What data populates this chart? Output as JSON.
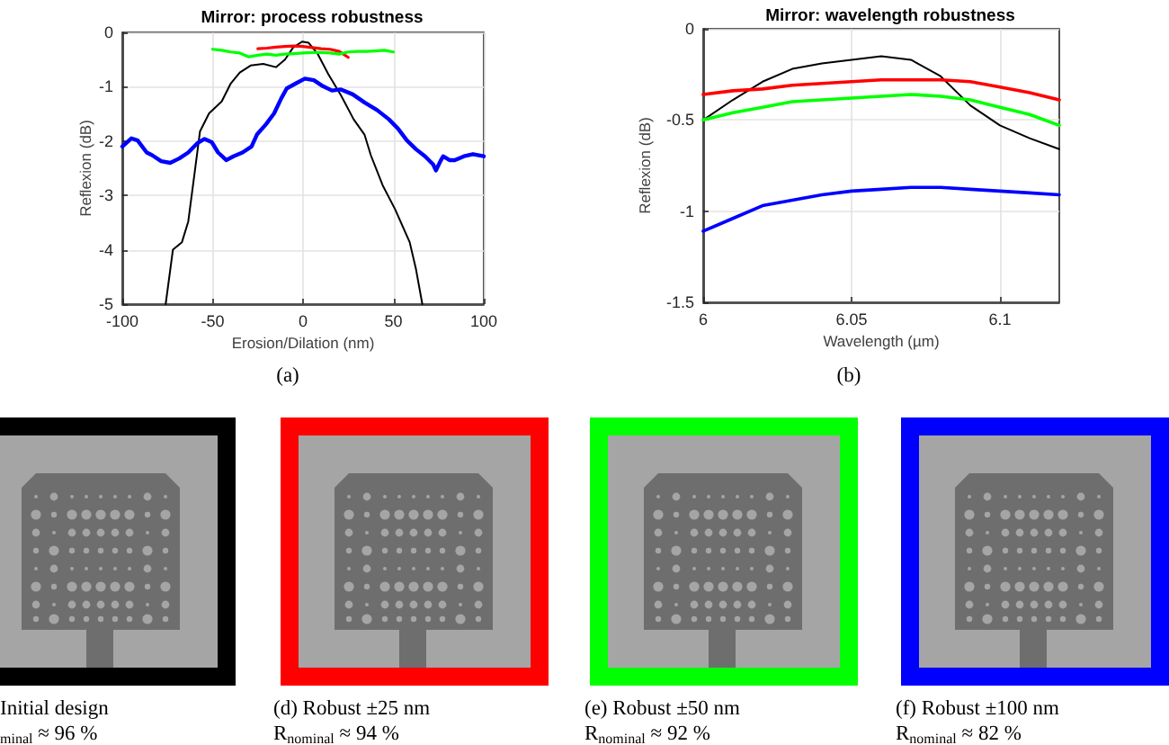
{
  "chart_data": [
    {
      "type": "line",
      "title": "Mirror: process robustness",
      "xlabel": "Erosion/Dilation (nm)",
      "ylabel": "Reflexion (dB)",
      "xlim": [
        -100,
        100
      ],
      "xticks": [
        -100,
        -50,
        0,
        50,
        100
      ],
      "ylim": [
        -5,
        0
      ],
      "yticks": [
        -5,
        -4,
        -3,
        -2,
        -1,
        0
      ],
      "grid": true,
      "annotations": [
        "(a)"
      ],
      "series": [
        {
          "color": "#000000",
          "x": [
            -76,
            -72,
            -67,
            -63.5,
            -60,
            -57,
            -52,
            -45,
            -40,
            -35,
            -29,
            -22,
            -15,
            -10,
            -5.5,
            -0.5,
            3,
            8,
            14,
            21,
            28,
            34,
            37.5,
            44,
            51,
            59,
            62.5,
            66
          ],
          "values": [
            -5,
            -4,
            -3.86,
            -3.48,
            -2.59,
            -1.82,
            -1.49,
            -1.27,
            -0.94,
            -0.74,
            -0.61,
            -0.58,
            -0.64,
            -0.5,
            -0.28,
            -0.17,
            -0.19,
            -0.39,
            -0.77,
            -1.16,
            -1.6,
            -1.88,
            -2.26,
            -2.81,
            -3.26,
            -3.86,
            -4.36,
            -5
          ]
        },
        {
          "color": "#ff0000",
          "x": [
            -25,
            -20,
            -15,
            -10,
            -5,
            0,
            5,
            10,
            15,
            20,
            25
          ],
          "values": [
            -0.3,
            -0.29,
            -0.27,
            -0.26,
            -0.25,
            -0.26,
            -0.28,
            -0.3,
            -0.31,
            -0.35,
            -0.46
          ]
        },
        {
          "color": "#00ff00",
          "x": [
            -50,
            -45,
            -40,
            -35,
            -30,
            -25,
            -20,
            -15,
            -10,
            -5,
            0,
            5,
            10,
            15,
            20,
            25,
            30,
            35,
            40,
            45,
            50
          ],
          "values": [
            -0.31,
            -0.33,
            -0.36,
            -0.38,
            -0.45,
            -0.42,
            -0.4,
            -0.42,
            -0.4,
            -0.39,
            -0.38,
            -0.37,
            -0.37,
            -0.38,
            -0.4,
            -0.36,
            -0.35,
            -0.35,
            -0.34,
            -0.33,
            -0.36
          ]
        },
        {
          "color": "#0000ff",
          "x": [
            -100,
            -95,
            -91.5,
            -86.5,
            -83.5,
            -78.5,
            -73.5,
            -68.5,
            -63.5,
            -58.5,
            -54.5,
            -50.5,
            -47,
            -42.5,
            -38.5,
            -33.5,
            -28.5,
            -25.5,
            -20.5,
            -16,
            -12,
            -9,
            -4,
            1,
            6,
            11,
            16,
            21,
            27.5,
            34,
            41,
            47.5,
            52.5,
            57.5,
            62.5,
            67.5,
            72,
            73.5,
            76,
            77.5,
            81,
            84,
            89,
            94,
            100
          ],
          "values": [
            -2.1,
            -1.95,
            -1.99,
            -2.21,
            -2.26,
            -2.37,
            -2.4,
            -2.32,
            -2.21,
            -2.04,
            -1.96,
            -2.02,
            -2.21,
            -2.35,
            -2.28,
            -2.21,
            -2.1,
            -1.88,
            -1.69,
            -1.49,
            -1.21,
            -1.03,
            -0.94,
            -0.85,
            -0.88,
            -0.99,
            -1.07,
            -1.05,
            -1.14,
            -1.29,
            -1.43,
            -1.6,
            -1.77,
            -1.99,
            -2.15,
            -2.28,
            -2.43,
            -2.54,
            -2.37,
            -2.28,
            -2.35,
            -2.35,
            -2.28,
            -2.24,
            -2.28
          ]
        }
      ]
    },
    {
      "type": "line",
      "title": "Mirror: wavelength robustness",
      "xlabel": "Wavelength (µm)",
      "ylabel": "Reflexion (dB)",
      "xlim": [
        6,
        6.12
      ],
      "xticks": [
        6,
        6.05,
        6.1
      ],
      "ylim": [
        -1.5,
        0
      ],
      "yticks": [
        -1.5,
        -1,
        -0.5,
        0
      ],
      "grid": true,
      "annotations": [
        "(b)"
      ],
      "x": [
        6,
        6.01,
        6.02,
        6.03,
        6.04,
        6.05,
        6.06,
        6.07,
        6.08,
        6.09,
        6.1,
        6.11,
        6.12
      ],
      "series": [
        {
          "color": "#000000",
          "values": [
            -0.5,
            -0.39,
            -0.29,
            -0.22,
            -0.19,
            -0.17,
            -0.15,
            -0.17,
            -0.26,
            -0.42,
            -0.53,
            -0.6,
            -0.66
          ]
        },
        {
          "color": "#ff0000",
          "values": [
            -0.36,
            -0.34,
            -0.33,
            -0.31,
            -0.3,
            -0.29,
            -0.28,
            -0.28,
            -0.28,
            -0.29,
            -0.32,
            -0.35,
            -0.39
          ]
        },
        {
          "color": "#00ff00",
          "values": [
            -0.5,
            -0.46,
            -0.43,
            -0.4,
            -0.39,
            -0.38,
            -0.37,
            -0.36,
            -0.37,
            -0.39,
            -0.43,
            -0.47,
            -0.53
          ]
        },
        {
          "color": "#0000ff",
          "values": [
            -1.11,
            -1.04,
            -0.97,
            -0.94,
            -0.91,
            -0.89,
            -0.88,
            -0.87,
            -0.87,
            -0.88,
            -0.89,
            -0.9,
            -0.91
          ]
        }
      ]
    },
    {
      "type": "other",
      "annotations": [
        "Initial design",
        "$_{minal}$ ≈ 96 %",
        "(d) Robust ±25 nm",
        "R$_{nominal}$ ≈ 94 %",
        "(e) Robust ±50 nm",
        "R$_{nominal}$ ≈ 92 %",
        "(f) Robust ±100 nm",
        "R$_{nominal}$ ≈ 82 %"
      ]
    }
  ]
}
